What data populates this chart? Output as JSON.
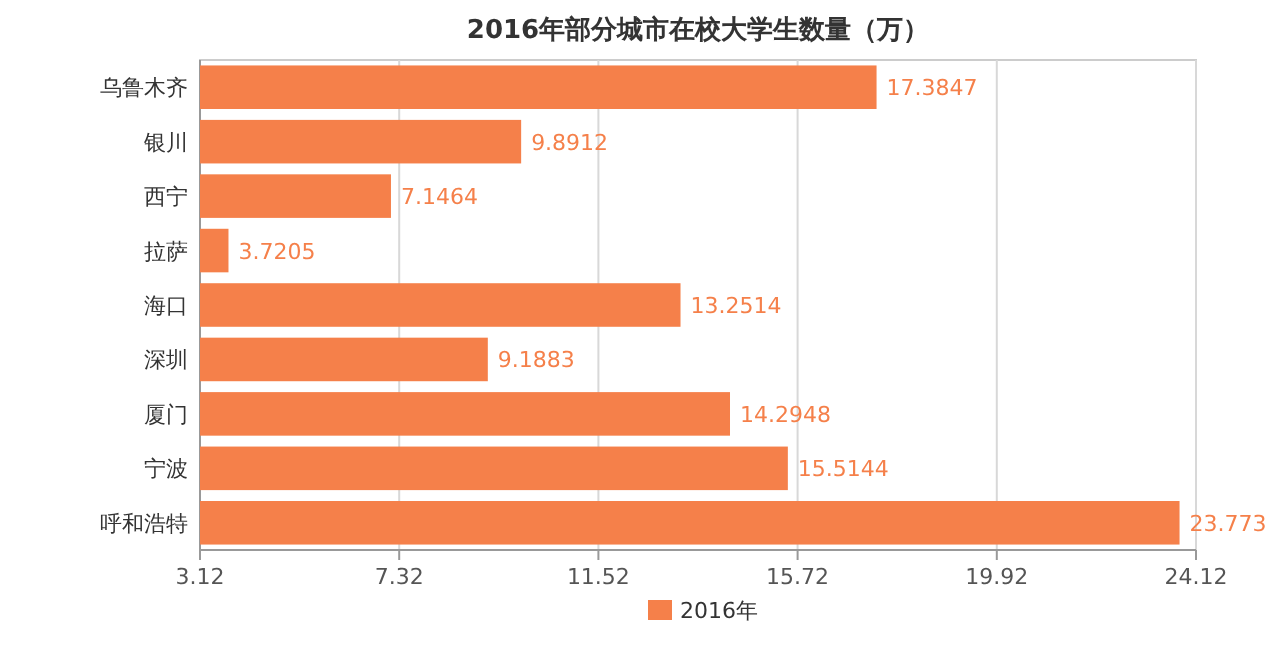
{
  "chart_data": {
    "type": "bar",
    "orientation": "horizontal",
    "title": "2016年部分城市在校大学生数量（万）",
    "categories": [
      "乌鲁木齐",
      "银川",
      "西宁",
      "拉萨",
      "海口",
      "深圳",
      "厦门",
      "宁波",
      "呼和浩特"
    ],
    "series": [
      {
        "name": "2016年",
        "color": "#f5804a",
        "values": [
          17.3847,
          9.8912,
          7.1464,
          3.7205,
          13.2514,
          9.1883,
          14.2948,
          15.5144,
          23.773
        ]
      }
    ],
    "xlim": [
      3.12,
      24.12
    ],
    "xticks": [
      3.12,
      7.32,
      11.52,
      15.72,
      19.92,
      24.12
    ],
    "grid": "x",
    "legend": "bottom",
    "data_labels": true
  }
}
